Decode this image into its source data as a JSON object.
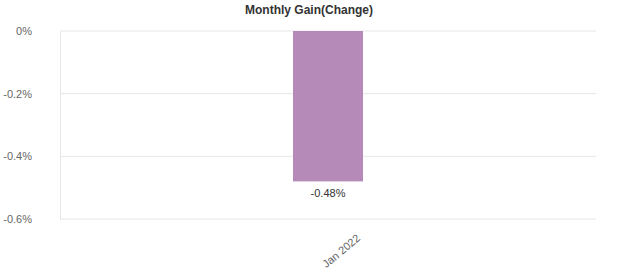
{
  "chart_data": {
    "type": "bar",
    "title": "Monthly Gain(Change)",
    "categories": [
      "Jan 2022"
    ],
    "values": [
      -0.48
    ],
    "value_labels": [
      "-0.48%"
    ],
    "color": "#b589b8",
    "ylim": [
      -0.6,
      0
    ],
    "yticks": [
      {
        "value": 0,
        "label": "0%"
      },
      {
        "value": -0.2,
        "label": "-0.2%"
      },
      {
        "value": -0.4,
        "label": "-0.4%"
      },
      {
        "value": -0.6,
        "label": "-0.6%"
      }
    ],
    "grid": true,
    "data_labels": true
  }
}
